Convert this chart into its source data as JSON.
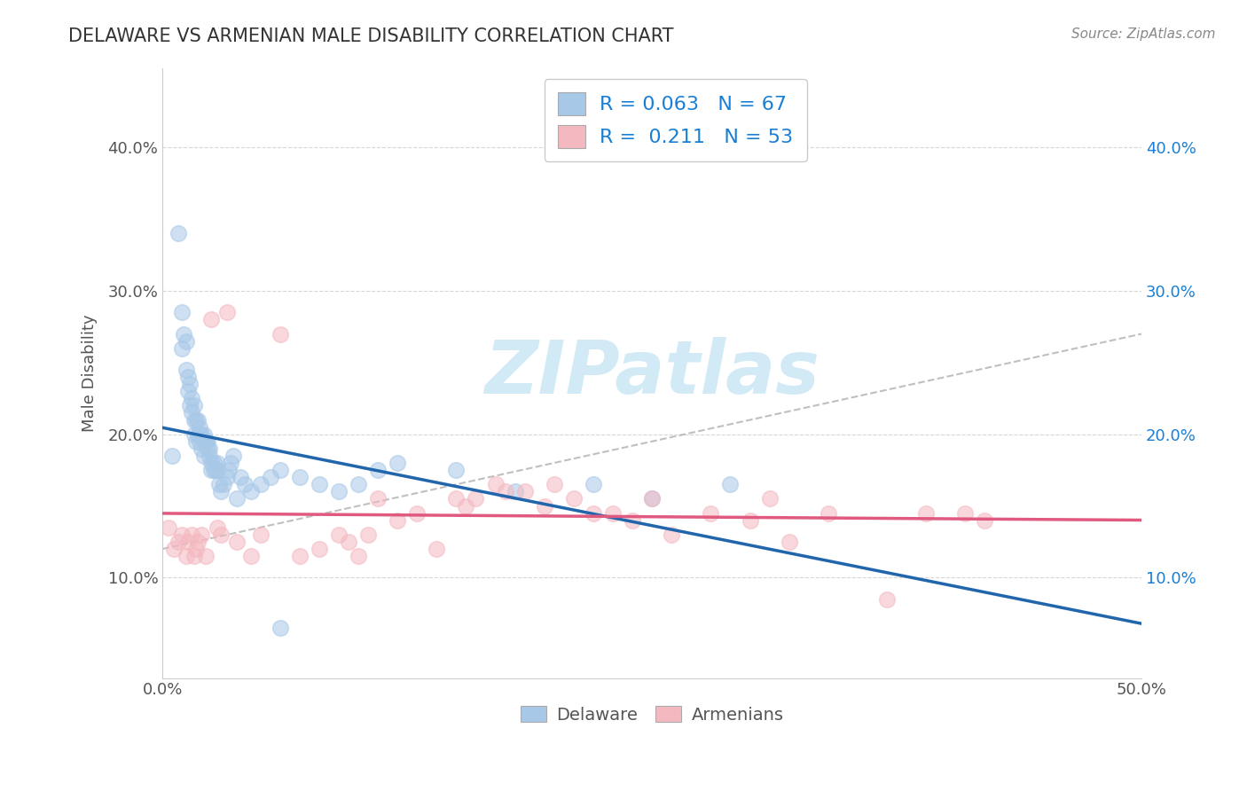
{
  "title": "DELAWARE VS ARMENIAN MALE DISABILITY CORRELATION CHART",
  "source_text": "Source: ZipAtlas.com",
  "ylabel": "Male Disability",
  "xlim": [
    0.0,
    0.5
  ],
  "ylim": [
    0.03,
    0.455
  ],
  "xtick_major_labels": [
    "0.0%",
    "50.0%"
  ],
  "xtick_major_values": [
    0.0,
    0.5
  ],
  "xtick_minor_values": [
    0.05,
    0.1,
    0.15,
    0.2,
    0.25,
    0.3,
    0.35,
    0.4,
    0.45
  ],
  "ytick_labels": [
    "10.0%",
    "20.0%",
    "30.0%",
    "40.0%"
  ],
  "ytick_values": [
    0.1,
    0.2,
    0.3,
    0.4
  ],
  "right_ytick_labels": [
    "10.0%",
    "20.0%",
    "30.0%",
    "40.0%"
  ],
  "right_ytick_values": [
    0.1,
    0.2,
    0.3,
    0.4
  ],
  "delaware_R": 0.063,
  "delaware_N": 67,
  "armenian_R": 0.211,
  "armenian_N": 53,
  "delaware_color": "#a8c8e8",
  "armenian_color": "#f4b8c0",
  "delaware_line_color": "#2166ac",
  "armenian_line_color": "#e05a80",
  "ref_line_color": "#b0b0b0",
  "background_color": "#ffffff",
  "grid_color": "#cccccc",
  "watermark_color": "#cce8f4",
  "title_color": "#333333",
  "legend_text_color": "#1a7fd4",
  "del_legend_color": "#a8c8e8",
  "arm_legend_color": "#f4b8c0",
  "delaware_x": [
    0.005,
    0.008,
    0.01,
    0.01,
    0.011,
    0.012,
    0.012,
    0.013,
    0.013,
    0.014,
    0.014,
    0.015,
    0.015,
    0.016,
    0.016,
    0.016,
    0.017,
    0.017,
    0.018,
    0.018,
    0.019,
    0.019,
    0.019,
    0.02,
    0.02,
    0.021,
    0.021,
    0.021,
    0.022,
    0.022,
    0.023,
    0.023,
    0.024,
    0.024,
    0.025,
    0.025,
    0.026,
    0.026,
    0.027,
    0.028,
    0.028,
    0.029,
    0.03,
    0.031,
    0.033,
    0.034,
    0.035,
    0.036,
    0.038,
    0.04,
    0.042,
    0.045,
    0.05,
    0.055,
    0.06,
    0.07,
    0.08,
    0.09,
    0.1,
    0.11,
    0.12,
    0.15,
    0.18,
    0.22,
    0.25,
    0.29,
    0.06
  ],
  "delaware_y": [
    0.185,
    0.34,
    0.26,
    0.285,
    0.27,
    0.265,
    0.245,
    0.23,
    0.24,
    0.235,
    0.22,
    0.225,
    0.215,
    0.21,
    0.22,
    0.2,
    0.21,
    0.195,
    0.21,
    0.2,
    0.205,
    0.2,
    0.195,
    0.2,
    0.19,
    0.2,
    0.195,
    0.185,
    0.195,
    0.195,
    0.195,
    0.19,
    0.185,
    0.19,
    0.18,
    0.175,
    0.18,
    0.175,
    0.175,
    0.18,
    0.175,
    0.165,
    0.16,
    0.165,
    0.17,
    0.175,
    0.18,
    0.185,
    0.155,
    0.17,
    0.165,
    0.16,
    0.165,
    0.17,
    0.175,
    0.17,
    0.165,
    0.16,
    0.165,
    0.175,
    0.18,
    0.175,
    0.16,
    0.165,
    0.155,
    0.165,
    0.065
  ],
  "armenian_x": [
    0.003,
    0.006,
    0.008,
    0.01,
    0.012,
    0.013,
    0.015,
    0.016,
    0.017,
    0.018,
    0.02,
    0.022,
    0.025,
    0.028,
    0.03,
    0.033,
    0.038,
    0.045,
    0.05,
    0.06,
    0.07,
    0.08,
    0.09,
    0.095,
    0.1,
    0.105,
    0.11,
    0.12,
    0.13,
    0.14,
    0.15,
    0.155,
    0.16,
    0.17,
    0.175,
    0.185,
    0.195,
    0.2,
    0.21,
    0.22,
    0.23,
    0.24,
    0.25,
    0.26,
    0.28,
    0.3,
    0.31,
    0.32,
    0.34,
    0.37,
    0.39,
    0.41,
    0.42
  ],
  "armenian_y": [
    0.135,
    0.12,
    0.125,
    0.13,
    0.115,
    0.125,
    0.13,
    0.115,
    0.12,
    0.125,
    0.13,
    0.115,
    0.28,
    0.135,
    0.13,
    0.285,
    0.125,
    0.115,
    0.13,
    0.27,
    0.115,
    0.12,
    0.13,
    0.125,
    0.115,
    0.13,
    0.155,
    0.14,
    0.145,
    0.12,
    0.155,
    0.15,
    0.155,
    0.165,
    0.16,
    0.16,
    0.15,
    0.165,
    0.155,
    0.145,
    0.145,
    0.14,
    0.155,
    0.13,
    0.145,
    0.14,
    0.155,
    0.125,
    0.145,
    0.085,
    0.145,
    0.145,
    0.14
  ],
  "ref_line_start_x": 0.0,
  "ref_line_end_x": 0.5,
  "ref_line_start_y": 0.12,
  "ref_line_end_y": 0.27
}
